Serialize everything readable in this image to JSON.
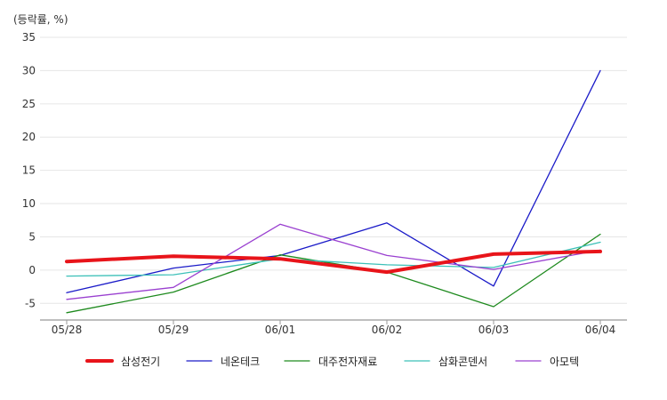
{
  "chart_data": {
    "type": "line",
    "y_unit_label": "(등락률, %)",
    "categories": [
      "05/28",
      "05/29",
      "06/01",
      "06/02",
      "06/03",
      "06/04"
    ],
    "ylim": [
      -7.5,
      35
    ],
    "yticks": [
      35,
      30,
      25,
      20,
      15,
      10,
      5,
      0,
      -5
    ],
    "grid": true,
    "legend_position": "bottom",
    "series": [
      {
        "name": "삼성전기",
        "color": "#e8141a",
        "values": [
          1.3,
          2.1,
          1.7,
          -0.3,
          2.4,
          2.8
        ]
      },
      {
        "name": "네온테크",
        "color": "#1a1ac8",
        "values": [
          -3.4,
          0.3,
          2.2,
          7.1,
          -2.4,
          30.0
        ]
      },
      {
        "name": "대주전자재료",
        "color": "#1e8a1e",
        "values": [
          -6.4,
          -3.3,
          2.3,
          -0.3,
          -5.5,
          5.4
        ]
      },
      {
        "name": "삼화콘덴서",
        "color": "#3cc0b8",
        "values": [
          -0.9,
          -0.7,
          1.7,
          0.8,
          0.4,
          4.2
        ]
      },
      {
        "name": "아모텍",
        "color": "#9a40d0",
        "values": [
          -4.4,
          -2.6,
          6.9,
          2.2,
          0.1,
          3.0
        ]
      }
    ]
  }
}
